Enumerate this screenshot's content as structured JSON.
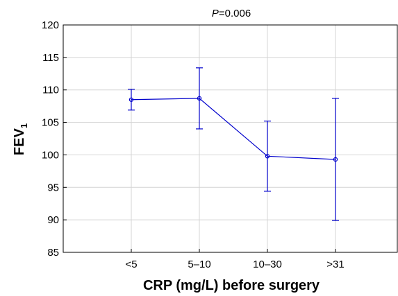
{
  "chart_data": {
    "type": "line",
    "annotation": {
      "italic": "P",
      "text": "=0.006"
    },
    "xlabel": "CRP (mg/L) before surgery",
    "ylabel": {
      "main": "FEV",
      "sub": "1"
    },
    "categories": [
      "<5",
      "5–10",
      "10–30",
      ">31"
    ],
    "series": [
      {
        "values": [
          108.5,
          108.7,
          99.8,
          99.3
        ],
        "lower": [
          106.9,
          104.0,
          94.4,
          89.9
        ],
        "upper": [
          110.1,
          113.4,
          105.2,
          108.7
        ]
      }
    ],
    "ylim": [
      85,
      120
    ],
    "yticks": [
      85,
      90,
      95,
      100,
      105,
      110,
      115,
      120
    ],
    "grid": true,
    "colors": {
      "series": "#0000cc",
      "grid": "#d4d4d4",
      "axis": "#000000"
    }
  }
}
